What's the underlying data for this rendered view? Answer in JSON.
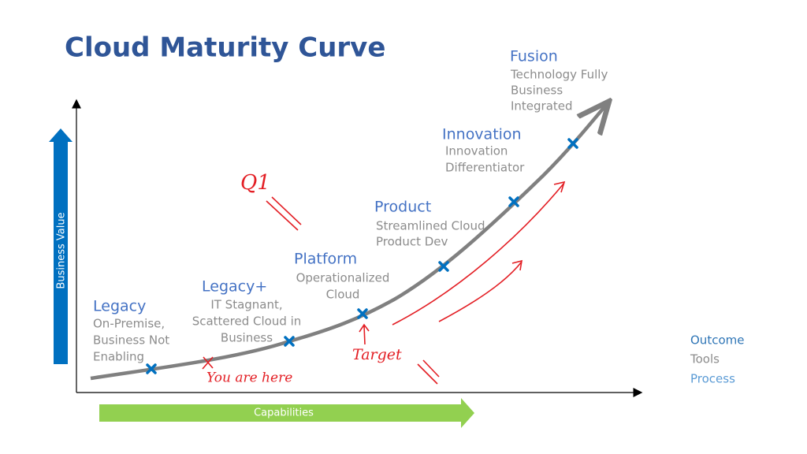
{
  "title": "Cloud Maturity Curve",
  "axes": {
    "y_label": "Business Value",
    "x_label": "Capabilities"
  },
  "stages": [
    {
      "name": "Legacy",
      "description": [
        "On-Premise,",
        "Business Not",
        "Enabling"
      ]
    },
    {
      "name": "Legacy+",
      "description": [
        "IT Stagnant,",
        "Scattered Cloud in",
        "Business"
      ]
    },
    {
      "name": "Platform",
      "description": [
        "Operationalized",
        "Cloud"
      ]
    },
    {
      "name": "Product",
      "description": [
        "Streamlined Cloud",
        "Product Dev"
      ]
    },
    {
      "name": "Innovation",
      "description": [
        "Innovation",
        "Differentiator"
      ]
    },
    {
      "name": "Fusion",
      "description": [
        "Technology Fully",
        "Business",
        "Integrated"
      ]
    }
  ],
  "legend": [
    "Outcome",
    "Tools",
    "Process"
  ],
  "annotations": {
    "q1": "Q1",
    "current": "You are here",
    "target": "Target"
  }
}
